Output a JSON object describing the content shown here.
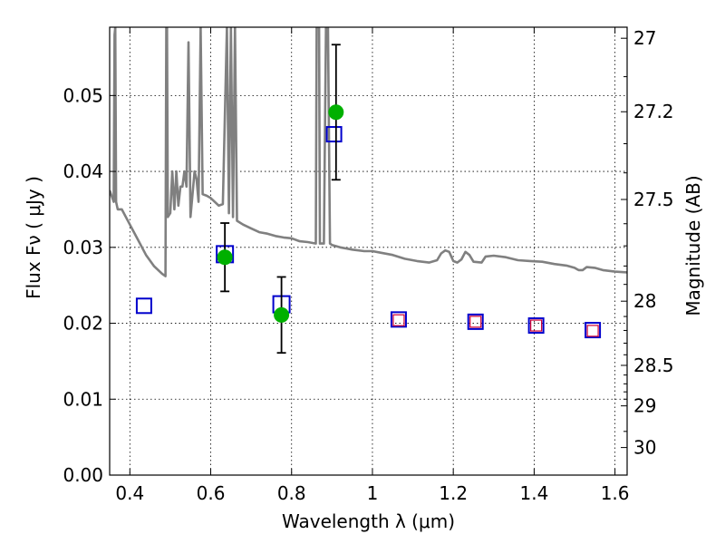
{
  "chart_data": {
    "type": "scatter",
    "title": "",
    "xlabel": "Wavelength  λ (μm)",
    "ylabel": "Flux  Fν  ( μJy )",
    "ylabel_right": "Magnitude (AB)",
    "xlim": [
      0.35,
      1.63
    ],
    "ylim": [
      0.0,
      0.059
    ],
    "grid": true,
    "colors": {
      "spectrum": "#808080",
      "observed": "#00b000",
      "model_box": "#0000cc",
      "predicted_box": "#cc0033",
      "errorbar": "#000000"
    },
    "x_ticks": [
      {
        "value": 0.4,
        "label": "0.4"
      },
      {
        "value": 0.6,
        "label": "0.6"
      },
      {
        "value": 0.8,
        "label": "0.8"
      },
      {
        "value": 1.0,
        "label": "1"
      },
      {
        "value": 1.2,
        "label": "1.2"
      },
      {
        "value": 1.4,
        "label": "1.4"
      },
      {
        "value": 1.6,
        "label": "1.6"
      }
    ],
    "y_ticks": [
      {
        "value": 0.0,
        "label": "0.00"
      },
      {
        "value": 0.01,
        "label": "0.01"
      },
      {
        "value": 0.02,
        "label": "0.02"
      },
      {
        "value": 0.03,
        "label": "0.03"
      },
      {
        "value": 0.04,
        "label": "0.04"
      },
      {
        "value": 0.05,
        "label": "0.05"
      }
    ],
    "right_ticks": [
      {
        "value": 27,
        "label": "27"
      },
      {
        "value": 27.2,
        "label": "27.2"
      },
      {
        "value": 27.5,
        "label": "27.5"
      },
      {
        "value": 28,
        "label": "28"
      },
      {
        "value": 28.5,
        "label": "28.5"
      },
      {
        "value": 29,
        "label": "29"
      },
      {
        "value": 30,
        "label": "30"
      }
    ],
    "right_minor_ticks": [
      27.1,
      27.3,
      27.4,
      27.6,
      27.7,
      27.8,
      27.9,
      28.1,
      28.2,
      28.3,
      28.4,
      28.6,
      28.7,
      28.8,
      28.9,
      29.5
    ],
    "series": [
      {
        "kind": "spectrum",
        "points": [
          [
            0.35,
            0.0375
          ],
          [
            0.36,
            0.036
          ],
          [
            0.362,
            0.058
          ],
          [
            0.364,
            0.059
          ],
          [
            0.366,
            0.036
          ],
          [
            0.37,
            0.035
          ],
          [
            0.38,
            0.035
          ],
          [
            0.4,
            0.033
          ],
          [
            0.42,
            0.031
          ],
          [
            0.44,
            0.029
          ],
          [
            0.46,
            0.0275
          ],
          [
            0.48,
            0.0265
          ],
          [
            0.488,
            0.0262
          ],
          [
            0.49,
            0.059
          ],
          [
            0.492,
            0.059
          ],
          [
            0.494,
            0.034
          ],
          [
            0.5,
            0.0345
          ],
          [
            0.505,
            0.04
          ],
          [
            0.51,
            0.035
          ],
          [
            0.515,
            0.04
          ],
          [
            0.52,
            0.0355
          ],
          [
            0.525,
            0.038
          ],
          [
            0.53,
            0.038
          ],
          [
            0.535,
            0.04
          ],
          [
            0.54,
            0.038
          ],
          [
            0.545,
            0.057
          ],
          [
            0.55,
            0.034
          ],
          [
            0.56,
            0.04
          ],
          [
            0.565,
            0.039
          ],
          [
            0.57,
            0.036
          ],
          [
            0.575,
            0.059
          ],
          [
            0.58,
            0.037
          ],
          [
            0.59,
            0.0368
          ],
          [
            0.6,
            0.0365
          ],
          [
            0.62,
            0.0355
          ],
          [
            0.63,
            0.0357
          ],
          [
            0.64,
            0.059
          ],
          [
            0.645,
            0.0345
          ],
          [
            0.65,
            0.059
          ],
          [
            0.655,
            0.034
          ],
          [
            0.66,
            0.059
          ],
          [
            0.665,
            0.0335
          ],
          [
            0.68,
            0.033
          ],
          [
            0.7,
            0.0325
          ],
          [
            0.72,
            0.032
          ],
          [
            0.74,
            0.0318
          ],
          [
            0.76,
            0.0315
          ],
          [
            0.78,
            0.0313
          ],
          [
            0.8,
            0.0312
          ],
          [
            0.82,
            0.0308
          ],
          [
            0.84,
            0.0307
          ],
          [
            0.86,
            0.0305
          ],
          [
            0.862,
            0.059
          ],
          [
            0.868,
            0.059
          ],
          [
            0.87,
            0.0305
          ],
          [
            0.88,
            0.0305
          ],
          [
            0.885,
            0.059
          ],
          [
            0.89,
            0.059
          ],
          [
            0.895,
            0.0305
          ],
          [
            0.9,
            0.0303
          ],
          [
            0.92,
            0.03
          ],
          [
            0.95,
            0.0297
          ],
          [
            0.98,
            0.0295
          ],
          [
            1.0,
            0.0295
          ],
          [
            1.02,
            0.0293
          ],
          [
            1.05,
            0.029
          ],
          [
            1.08,
            0.0285
          ],
          [
            1.11,
            0.0282
          ],
          [
            1.14,
            0.028
          ],
          [
            1.16,
            0.0283
          ],
          [
            1.17,
            0.0292
          ],
          [
            1.18,
            0.0296
          ],
          [
            1.19,
            0.0294
          ],
          [
            1.2,
            0.0282
          ],
          [
            1.21,
            0.028
          ],
          [
            1.22,
            0.0284
          ],
          [
            1.23,
            0.0294
          ],
          [
            1.24,
            0.029
          ],
          [
            1.25,
            0.0281
          ],
          [
            1.27,
            0.028
          ],
          [
            1.28,
            0.0288
          ],
          [
            1.3,
            0.0289
          ],
          [
            1.33,
            0.0287
          ],
          [
            1.36,
            0.0283
          ],
          [
            1.39,
            0.0282
          ],
          [
            1.42,
            0.0281
          ],
          [
            1.45,
            0.0278
          ],
          [
            1.48,
            0.0276
          ],
          [
            1.5,
            0.0273
          ],
          [
            1.51,
            0.027
          ],
          [
            1.52,
            0.027
          ],
          [
            1.53,
            0.0274
          ],
          [
            1.55,
            0.0273
          ],
          [
            1.57,
            0.027
          ],
          [
            1.6,
            0.0268
          ],
          [
            1.63,
            0.0267
          ]
        ]
      },
      {
        "kind": "observed",
        "points": [
          {
            "x": 0.635,
            "y": 0.0287,
            "yerr": 0.0045
          },
          {
            "x": 0.775,
            "y": 0.0211,
            "yerr": 0.005
          },
          {
            "x": 0.91,
            "y": 0.0478,
            "yerr": 0.0089
          }
        ]
      },
      {
        "kind": "model",
        "points": [
          {
            "x": 0.435,
            "y": 0.0223
          },
          {
            "x": 0.635,
            "y": 0.0291
          },
          {
            "x": 0.775,
            "y": 0.0225
          },
          {
            "x": 0.905,
            "y": 0.0449
          },
          {
            "x": 1.065,
            "y": 0.0205
          },
          {
            "x": 1.255,
            "y": 0.0202
          },
          {
            "x": 1.405,
            "y": 0.0197
          },
          {
            "x": 1.545,
            "y": 0.0191
          }
        ]
      },
      {
        "kind": "predicted",
        "points": [
          {
            "x": 1.065,
            "y": 0.0204
          },
          {
            "x": 1.255,
            "y": 0.0202
          },
          {
            "x": 1.405,
            "y": 0.0197
          },
          {
            "x": 1.545,
            "y": 0.019
          }
        ]
      }
    ]
  }
}
